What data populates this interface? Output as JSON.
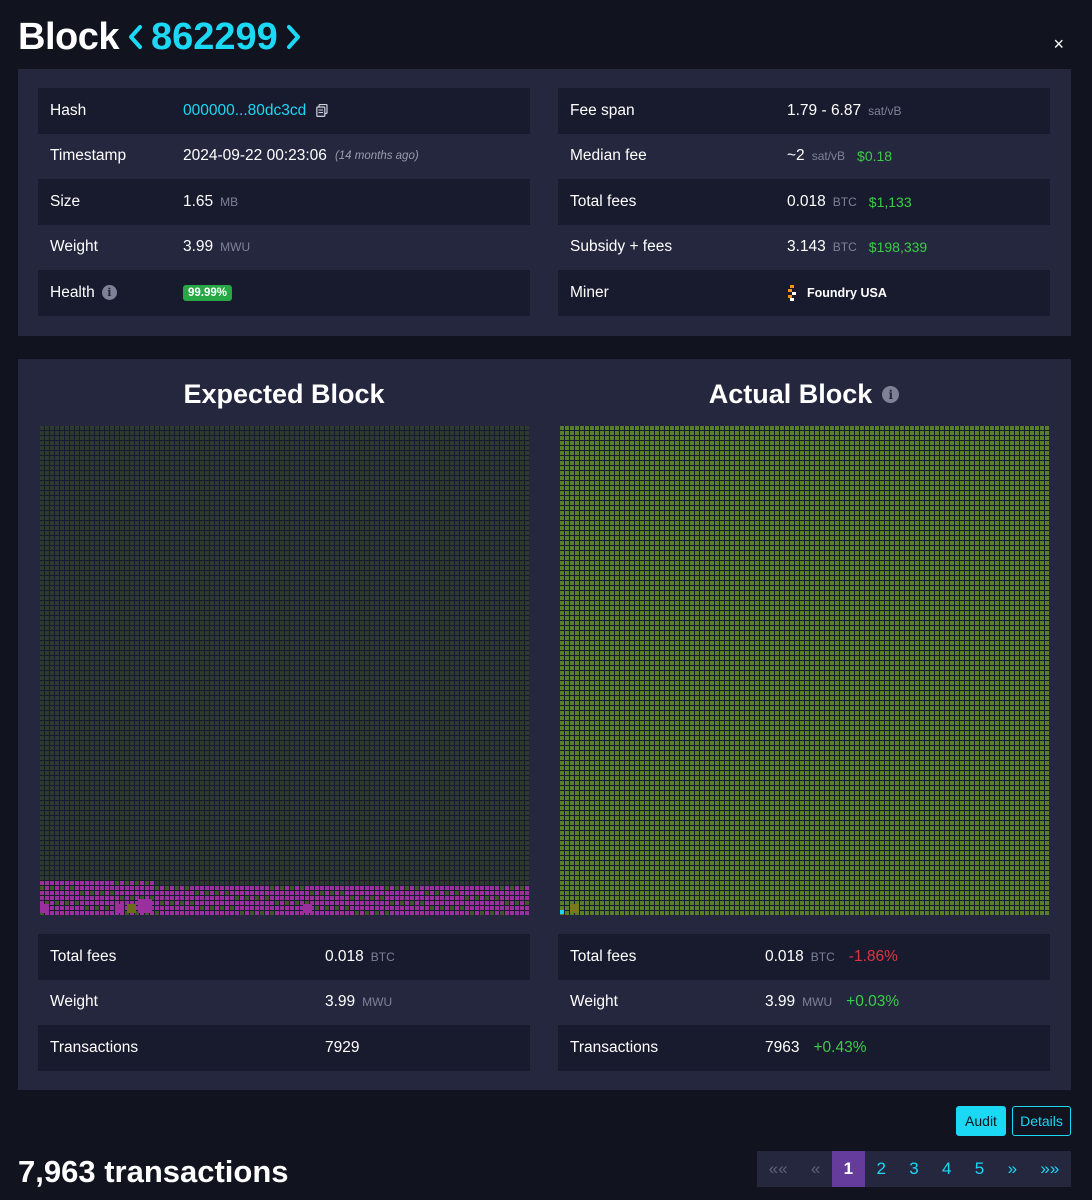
{
  "header": {
    "title": "Block",
    "prev_arrow": "‹",
    "height": "862299",
    "next_arrow": "›",
    "close": "×"
  },
  "info_left": {
    "hash_label": "Hash",
    "hash_value": "000000...80dc3cd",
    "timestamp_label": "Timestamp",
    "timestamp_value": "2024-09-22 00:23:06",
    "timestamp_ago": "(14 months ago)",
    "size_label": "Size",
    "size_value": "1.65",
    "size_unit": "MB",
    "weight_label": "Weight",
    "weight_value": "3.99",
    "weight_unit": "MWU",
    "health_label": "Health",
    "health_info": "i",
    "health_value": "99.99%"
  },
  "info_right": {
    "fee_span_label": "Fee span",
    "fee_span_value": "1.79 - 6.87",
    "fee_span_unit": "sat/vB",
    "median_fee_label": "Median fee",
    "median_fee_value": "~2",
    "median_fee_unit": "sat/vB",
    "median_fee_fiat": "$0.18",
    "total_fees_label": "Total fees",
    "total_fees_value": "0.018",
    "total_fees_unit": "BTC",
    "total_fees_fiat": "$1,133",
    "subsidy_label": "Subsidy + fees",
    "subsidy_value": "3.143",
    "subsidy_unit": "BTC",
    "subsidy_fiat": "$198,339",
    "miner_label": "Miner",
    "miner_value": "Foundry USA"
  },
  "expected": {
    "title": "Expected Block",
    "total_fees_label": "Total fees",
    "total_fees_value": "0.018",
    "total_fees_unit": "BTC",
    "weight_label": "Weight",
    "weight_value": "3.99",
    "weight_unit": "MWU",
    "transactions_label": "Transactions",
    "transactions_value": "7929"
  },
  "actual": {
    "title": "Actual Block",
    "title_info": "i",
    "total_fees_label": "Total fees",
    "total_fees_value": "0.018",
    "total_fees_unit": "BTC",
    "total_fees_delta": "-1.86%",
    "weight_label": "Weight",
    "weight_value": "3.99",
    "weight_unit": "MWU",
    "weight_delta": "+0.03%",
    "transactions_label": "Transactions",
    "transactions_value": "7963",
    "transactions_delta": "+0.43%"
  },
  "buttons": {
    "audit": "Audit",
    "details": "Details"
  },
  "tx_count": "7,963 transactions",
  "pagination": {
    "first": "««",
    "prev": "«",
    "pages": [
      "1",
      "2",
      "3",
      "4",
      "5"
    ],
    "active_page": "1",
    "next": "»",
    "last": "»»"
  },
  "colors": {
    "accent": "#1bd8f4",
    "positive": "#3bcc49",
    "negative": "#dc3545",
    "expected_cell": "#2d3a2f",
    "missing_tx": "#9b2f9e",
    "actual_cell": "#5a7f2b",
    "added_tx": "#7a7a1c",
    "active_page": "#653b9c"
  }
}
